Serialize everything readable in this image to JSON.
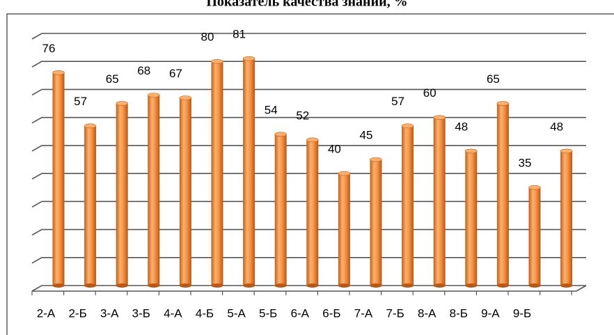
{
  "chart_data": {
    "type": "bar",
    "title": "Показатель качества знаний, %",
    "categories": [
      "2-А",
      "2-Б",
      "3-А",
      "3-Б",
      "4-А",
      "4-Б",
      "5-А",
      "5-Б",
      "6-А",
      "6-Б",
      "7-А",
      "7-Б",
      "8-А",
      "8-Б",
      "9-А",
      "9-Б",
      null
    ],
    "values": [
      76,
      57,
      65,
      68,
      67,
      80,
      81,
      54,
      52,
      40,
      45,
      57,
      60,
      48,
      65,
      35,
      48
    ],
    "color": "#f79646",
    "ylim": [
      0,
      90
    ],
    "yticks": [
      0,
      10,
      20,
      30,
      40,
      50,
      60,
      70,
      80,
      90
    ],
    "grid": true
  }
}
